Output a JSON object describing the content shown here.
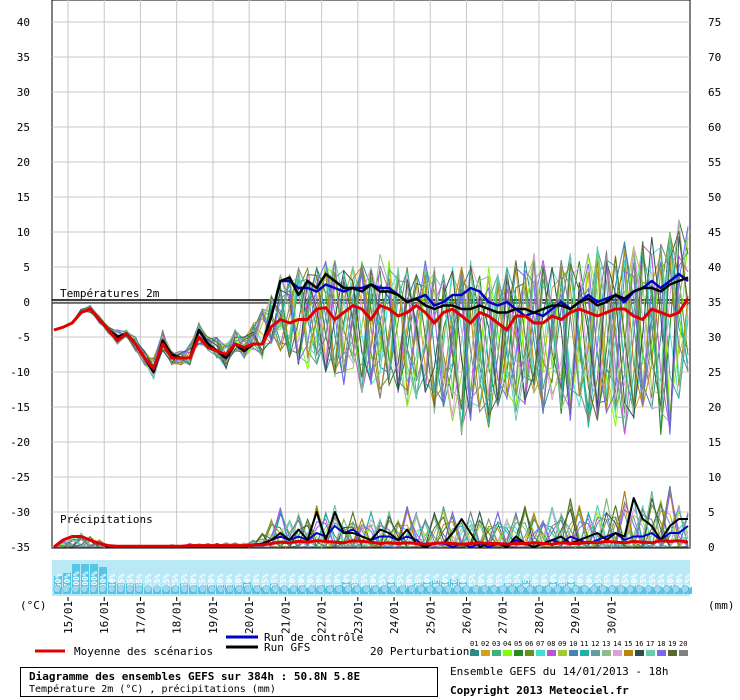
{
  "chart_data": {
    "type": "line",
    "title": "Diagramme des ensembles GEFS sur 384h : 50.8N 5.8E",
    "subtitle": "Température 2m (°C) , précipitations (mm)",
    "run_info": "Ensemble GEFS du 14/01/2013 - 18h",
    "copyright": "Copyright 2013 Meteociel.fr",
    "left_axis": {
      "unit_label": "(°C)",
      "ticks": [
        "40",
        "35",
        "30",
        "25",
        "20",
        "15",
        "10",
        "5",
        "0",
        "-5",
        "-10",
        "-15",
        "-20",
        "-25",
        "-30",
        "-35"
      ],
      "range": [
        -35,
        40
      ]
    },
    "right_axis": {
      "unit_label": "(mm)",
      "ticks": [
        "75",
        "70",
        "65",
        "60",
        "55",
        "50",
        "45",
        "40",
        "35",
        "30",
        "25",
        "20",
        "15",
        "10",
        "5",
        "0"
      ],
      "range": [
        0,
        75
      ]
    },
    "x_labels": [
      "15/01",
      "16/01",
      "17/01",
      "18/01",
      "19/01",
      "20/01",
      "21/01",
      "22/01",
      "23/01",
      "24/01",
      "25/01",
      "26/01",
      "27/01",
      "28/01",
      "29/01",
      "30/01"
    ],
    "panel_labels": {
      "temp": "Températures 2m",
      "precip": "Précipitations"
    },
    "probabilities": [
      "60%",
      "70%",
      "100%",
      "100%",
      "100%",
      "90%",
      "40%",
      "35%",
      "35%",
      "35%",
      "15%",
      "15%",
      "15%",
      "25%",
      "35%",
      "30%",
      "25%",
      "30%",
      "30%",
      "30%",
      "30%",
      "40%",
      "30%",
      "25%",
      "35%",
      "25%",
      "20%",
      "30%",
      "20%",
      "30%",
      "30%",
      "30%",
      "40%",
      "35%",
      "25%",
      "30%",
      "25%",
      "40%",
      "25%",
      "30%",
      "35%",
      "40%",
      "45%",
      "40%",
      "50%",
      "40%",
      "25%",
      "30%",
      "30%",
      "25%",
      "35%",
      "35%",
      "45%",
      "30%",
      "30%",
      "40%",
      "35%",
      "40%",
      "30%",
      "20%",
      "35%",
      "25%",
      "30%",
      "25%",
      "30%",
      "25%",
      "25%",
      "25%",
      "30%",
      "20%",
      "25%"
    ],
    "legend": {
      "moyenne": "Moyenne des scénarios",
      "controle": "Run de contrôle",
      "gfs": "Run GFS",
      "perturbations": "20 Perturbations",
      "pert_ids": [
        "01",
        "02",
        "03",
        "04",
        "05",
        "06",
        "07",
        "08",
        "09",
        "10",
        "11",
        "12",
        "13",
        "14",
        "15",
        "16",
        "17",
        "18",
        "19",
        "20"
      ]
    },
    "colors": {
      "moyenne": "#e00000",
      "controle": "#0000c8",
      "gfs": "#000000",
      "perturbations": [
        "#2e8b8b",
        "#d4a017",
        "#3cb371",
        "#7fff00",
        "#228b22",
        "#6b8e23",
        "#40e0d0",
        "#ba55d3",
        "#9acd32",
        "#4682b4",
        "#20b2aa",
        "#5f9ea0",
        "#8fbc8f",
        "#dda0dd",
        "#b8860b",
        "#2f4f4f",
        "#66cdaa",
        "#7b68ee",
        "#556b2f",
        "#808080"
      ]
    },
    "x_step_hours": 6,
    "temperature": {
      "moyenne": [
        -4,
        -3.6,
        -3,
        -1.5,
        -1,
        -2.5,
        -4,
        -5.5,
        -4.5,
        -6,
        -8,
        -9.5,
        -6,
        -8,
        -8,
        -8,
        -5,
        -6.5,
        -7,
        -7.5,
        -6,
        -6.5,
        -6,
        -6,
        -3.5,
        -2.5,
        -3,
        -2.5,
        -2.5,
        -1,
        -0.8,
        -2.5,
        -1.5,
        -0.5,
        -1,
        -2.5,
        -0.5,
        -1,
        -2,
        -1.5,
        -0.5,
        -1.5,
        -3,
        -1.5,
        -1,
        -2,
        -3,
        -1.5,
        -2,
        -3,
        -4,
        -2,
        -2,
        -3,
        -3,
        -2,
        -2.5,
        -1.5,
        -1,
        -1.5,
        -2,
        -1.5,
        -1,
        -1,
        -2,
        -2.5,
        -1,
        -1.5,
        -2,
        -1.5,
        0.5
      ],
      "controle": [
        null,
        null,
        -3,
        -1.5,
        -1,
        -2.5,
        -4,
        -5,
        -4.5,
        -6,
        -8,
        -10,
        -6,
        -7.5,
        -8,
        -8,
        -4,
        -6,
        -7,
        -8,
        -6,
        -7,
        -6,
        -6,
        -2,
        3,
        3,
        2,
        2,
        1.5,
        2.5,
        2,
        1.5,
        2,
        2,
        2.5,
        2,
        2,
        1,
        0,
        0.5,
        1,
        -0.5,
        0,
        1,
        1,
        2,
        1.5,
        0,
        -0.5,
        0,
        -1,
        -2,
        -1.5,
        -2,
        -1,
        0,
        -1,
        0,
        1,
        0,
        0.5,
        1,
        0,
        1.5,
        2,
        3,
        2,
        3,
        4,
        3
      ],
      "gfs": [
        null,
        null,
        -3,
        -1.5,
        -1,
        -2.5,
        -4,
        -5,
        -4.5,
        -6,
        -8,
        -10,
        -5.5,
        -7.5,
        -8,
        -8,
        -4,
        -6,
        -7,
        -8,
        -6,
        -7,
        -6,
        -6,
        -2,
        3,
        3.5,
        1,
        3,
        2,
        4,
        3,
        2,
        2,
        1.5,
        2.5,
        1.5,
        1.5,
        1,
        0,
        0.5,
        -0.5,
        -1,
        -0.5,
        -0.5,
        -1,
        -1,
        -0.5,
        -1,
        -1.5,
        -1.5,
        -1,
        -1,
        -1.5,
        -1,
        -0.5,
        -0.5,
        -1,
        0,
        0.5,
        -0.5,
        0,
        1,
        0.5,
        1.5,
        2,
        2,
        1.5,
        2.5,
        3,
        3.5
      ],
      "spread_min": [
        -4,
        -3.6,
        -3,
        -1.5,
        -1.5,
        -3,
        -4.5,
        -6,
        -5,
        -7,
        -9,
        -11,
        -7,
        -9,
        -9,
        -9,
        -6,
        -7,
        -8,
        -9.5,
        -7,
        -8,
        -7,
        -8,
        -6,
        -7,
        -8,
        -9,
        -10,
        -9,
        -10,
        -11,
        -12,
        -10,
        -13,
        -12,
        -14,
        -12,
        -13,
        -15,
        -14,
        -13,
        -16,
        -15,
        -17,
        -19,
        -17,
        -16,
        -18,
        -15,
        -14,
        -17,
        -15,
        -13,
        -16,
        -14,
        -16,
        -17,
        -15,
        -18,
        -17,
        -16,
        -18,
        -19,
        -17,
        -15,
        -16,
        -19,
        -19,
        -14,
        -10
      ],
      "spread_max": [
        -4,
        -3.6,
        -3,
        -1,
        -0.5,
        -2,
        -3.5,
        -4,
        -4,
        -5,
        -7,
        -8,
        -4,
        -7,
        -7,
        -6,
        -3,
        -5,
        -5,
        -6,
        -4,
        -5,
        -3,
        -1,
        1,
        4,
        4,
        5,
        5,
        5,
        6,
        6,
        5,
        5,
        6,
        5,
        7,
        6,
        5,
        5,
        4,
        6,
        5,
        4,
        5,
        5,
        6,
        5,
        5,
        4,
        5,
        6,
        6,
        7,
        6,
        5,
        6,
        7,
        6,
        7,
        8,
        8,
        7,
        9,
        8,
        9,
        10,
        9,
        10,
        12,
        11
      ]
    },
    "precipitation": {
      "moyenne": [
        0,
        1,
        1.5,
        1.5,
        1,
        0.5,
        0.2,
        0.1,
        0.1,
        0.1,
        0.1,
        0.1,
        0.1,
        0.1,
        0.1,
        0.2,
        0.2,
        0.2,
        0.2,
        0.2,
        0.2,
        0.2,
        0.3,
        0.3,
        0.5,
        0.7,
        0.6,
        0.8,
        0.7,
        0.9,
        0.8,
        0.7,
        0.6,
        0.9,
        0.8,
        0.7,
        0.5,
        0.6,
        0.5,
        0.6,
        0.5,
        0.4,
        0.5,
        0.6,
        0.5,
        0.4,
        0.5,
        0.6,
        0.5,
        0.5,
        0.4,
        0.5,
        0.5,
        0.6,
        0.5,
        0.4,
        0.6,
        0.5,
        0.5,
        0.7,
        0.6,
        0.8,
        0.7,
        0.6,
        0.8,
        0.7,
        0.6,
        0.9,
        0.8,
        0.9,
        0.7
      ],
      "controle": [
        0,
        1,
        1.5,
        1.5,
        1,
        0.5,
        0,
        0,
        0,
        0,
        0,
        0,
        0,
        0,
        0,
        0,
        0,
        0,
        0,
        0,
        0,
        0,
        0.3,
        0.5,
        1,
        1.5,
        1,
        1.5,
        1,
        2,
        1.5,
        3,
        2,
        2.5,
        1.5,
        1,
        1.5,
        1.5,
        1,
        1.5,
        1,
        0,
        0.5,
        0.5,
        0,
        0.5,
        0,
        0.5,
        0,
        0.5,
        0,
        1,
        0.5,
        0,
        0.5,
        1,
        0.5,
        1.5,
        1,
        0.5,
        1,
        1.5,
        2,
        1,
        1.5,
        1.5,
        2,
        1,
        2,
        2,
        3
      ],
      "gfs": [
        0,
        1,
        1.5,
        1.5,
        1,
        0.5,
        0,
        0,
        0,
        0,
        0,
        0,
        0,
        0,
        0,
        0,
        0,
        0,
        0,
        0,
        0,
        0,
        0.3,
        0.5,
        1,
        2,
        1,
        2.5,
        1,
        5,
        1,
        5,
        2,
        2,
        1.5,
        1,
        2.5,
        2,
        1,
        2.5,
        0.5,
        0,
        0.5,
        0.5,
        2,
        4,
        2,
        0,
        0.5,
        0.5,
        0,
        1.5,
        0.5,
        0,
        0.5,
        1,
        1.5,
        0.5,
        1,
        1.5,
        2,
        1,
        2,
        1.5,
        7,
        4,
        3,
        1,
        3,
        4,
        4
      ],
      "spread_max": [
        0,
        1,
        1.5,
        2,
        1.5,
        1,
        0.3,
        0.2,
        0.2,
        0.2,
        0.2,
        0.2,
        0.2,
        0.3,
        0.2,
        0.5,
        0.5,
        0.5,
        0.5,
        0.6,
        0.6,
        0.6,
        1,
        2,
        4,
        6,
        4,
        5,
        4,
        6,
        5,
        6,
        4,
        5,
        4,
        5,
        4,
        5,
        4,
        6,
        5,
        4,
        5,
        6,
        5,
        4,
        5,
        5,
        4,
        5,
        4,
        5,
        6,
        5,
        4,
        6,
        5,
        7,
        6,
        5,
        6,
        7,
        6,
        8,
        7,
        6,
        8,
        7,
        9,
        6,
        5
      ]
    }
  }
}
